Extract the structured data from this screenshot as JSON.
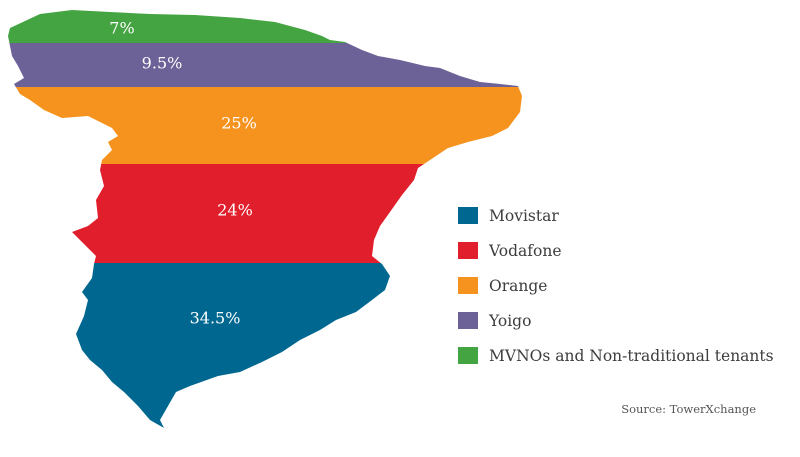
{
  "chart_data": {
    "type": "pie",
    "title": "",
    "categories": [
      "Movistar",
      "Vodafone",
      "Orange",
      "Yoigo",
      "MVNOs and Non-traditional tenants"
    ],
    "values": [
      34.5,
      24,
      25,
      9.5,
      7
    ],
    "labels": [
      "34.5%",
      "24%",
      "25%",
      "9.5%",
      "7%"
    ],
    "colors": [
      "#006890",
      "#e11f2c",
      "#f6921e",
      "#6c6297",
      "#45a442"
    ],
    "legend_position": "right",
    "source": "Source: TowerXchange"
  },
  "legend": {
    "items": [
      {
        "label": "Movistar",
        "color": "#006890"
      },
      {
        "label": "Vodafone",
        "color": "#e11f2c"
      },
      {
        "label": "Orange",
        "color": "#f6921e"
      },
      {
        "label": "Yoigo",
        "color": "#6c6297"
      },
      {
        "label": "MVNOs and Non-traditional tenants",
        "color": "#45a442"
      }
    ]
  }
}
